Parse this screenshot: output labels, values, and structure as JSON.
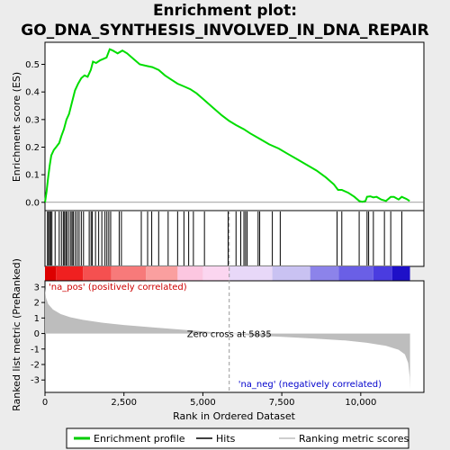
{
  "chart_data": {
    "type": "line",
    "title_line1": "Enrichment plot:",
    "title_line2": "GO_DNA_SYNTHESIS_INVOLVED_IN_DNA_REPAIR",
    "xlabel": "Rank in Ordered Dataset",
    "ylabel_top": "Enrichment score (ES)",
    "ylabel_bottom": "Ranked list metric (PreRanked)",
    "xlim": [
      0,
      12000
    ],
    "es_ylim": [
      -0.03,
      0.58
    ],
    "metric_ylim": [
      -3.8,
      3.4
    ],
    "x_ticks": [
      {
        "value": 0,
        "label": "0"
      },
      {
        "value": 2500,
        "label": "2,500"
      },
      {
        "value": 5000,
        "label": "5,000"
      },
      {
        "value": 7500,
        "label": "7,500"
      },
      {
        "value": 10000,
        "label": "10,000"
      }
    ],
    "es_ticks": [
      {
        "value": 0.0,
        "label": "0.0"
      },
      {
        "value": 0.1,
        "label": "0.1"
      },
      {
        "value": 0.2,
        "label": "0.2"
      },
      {
        "value": 0.3,
        "label": "0.3"
      },
      {
        "value": 0.4,
        "label": "0.4"
      },
      {
        "value": 0.5,
        "label": "0.5"
      }
    ],
    "metric_ticks": [
      {
        "value": 3,
        "label": "3"
      },
      {
        "value": 2,
        "label": "2"
      },
      {
        "value": 1,
        "label": "1"
      },
      {
        "value": 0,
        "label": "0"
      },
      {
        "value": -1,
        "label": "-1"
      },
      {
        "value": -2,
        "label": "-2"
      },
      {
        "value": -3,
        "label": "-3"
      }
    ],
    "enrichment_profile": [
      [
        0,
        0.0
      ],
      [
        50,
        0.04
      ],
      [
        100,
        0.09
      ],
      [
        150,
        0.135
      ],
      [
        200,
        0.17
      ],
      [
        280,
        0.19
      ],
      [
        350,
        0.2
      ],
      [
        450,
        0.215
      ],
      [
        520,
        0.24
      ],
      [
        600,
        0.265
      ],
      [
        680,
        0.3
      ],
      [
        760,
        0.32
      ],
      [
        850,
        0.36
      ],
      [
        950,
        0.405
      ],
      [
        1050,
        0.43
      ],
      [
        1150,
        0.45
      ],
      [
        1250,
        0.46
      ],
      [
        1350,
        0.455
      ],
      [
        1450,
        0.48
      ],
      [
        1520,
        0.51
      ],
      [
        1620,
        0.505
      ],
      [
        1750,
        0.515
      ],
      [
        1850,
        0.52
      ],
      [
        1950,
        0.525
      ],
      [
        2050,
        0.555
      ],
      [
        2150,
        0.55
      ],
      [
        2300,
        0.54
      ],
      [
        2450,
        0.55
      ],
      [
        2600,
        0.54
      ],
      [
        2800,
        0.52
      ],
      [
        3000,
        0.5
      ],
      [
        3200,
        0.495
      ],
      [
        3400,
        0.49
      ],
      [
        3600,
        0.48
      ],
      [
        3800,
        0.46
      ],
      [
        4000,
        0.445
      ],
      [
        4200,
        0.43
      ],
      [
        4400,
        0.42
      ],
      [
        4600,
        0.41
      ],
      [
        4800,
        0.395
      ],
      [
        5000,
        0.375
      ],
      [
        5300,
        0.345
      ],
      [
        5600,
        0.315
      ],
      [
        5835,
        0.295
      ],
      [
        6050,
        0.28
      ],
      [
        6300,
        0.265
      ],
      [
        6500,
        0.25
      ],
      [
        6800,
        0.23
      ],
      [
        7100,
        0.21
      ],
      [
        7400,
        0.195
      ],
      [
        7700,
        0.175
      ],
      [
        8000,
        0.155
      ],
      [
        8300,
        0.135
      ],
      [
        8600,
        0.115
      ],
      [
        8900,
        0.09
      ],
      [
        9150,
        0.065
      ],
      [
        9280,
        0.045
      ],
      [
        9400,
        0.045
      ],
      [
        9600,
        0.035
      ],
      [
        9800,
        0.02
      ],
      [
        9950,
        0.005
      ],
      [
        10050,
        0.002
      ],
      [
        10150,
        0.005
      ],
      [
        10200,
        0.02
      ],
      [
        10300,
        0.022
      ],
      [
        10400,
        0.018
      ],
      [
        10500,
        0.02
      ],
      [
        10650,
        0.01
      ],
      [
        10800,
        0.005
      ],
      [
        10950,
        0.02
      ],
      [
        11050,
        0.02
      ],
      [
        11200,
        0.01
      ],
      [
        11300,
        0.02
      ],
      [
        11450,
        0.012
      ],
      [
        11550,
        0.005
      ]
    ],
    "hits": [
      80,
      110,
      150,
      180,
      220,
      320,
      450,
      520,
      580,
      620,
      660,
      700,
      760,
      820,
      860,
      900,
      960,
      1020,
      1080,
      1150,
      1220,
      1400,
      1460,
      1500,
      1600,
      1700,
      1800,
      1900,
      1960,
      2020,
      2080,
      2350,
      2420,
      3050,
      3250,
      3380,
      3600,
      3900,
      4200,
      4400,
      4550,
      4700,
      5050,
      5800,
      6050,
      6200,
      6300,
      6350,
      6400,
      6750,
      6800,
      7200,
      7450,
      9250,
      9400,
      9950,
      10200,
      10250,
      10400,
      10750,
      10950,
      11300
    ],
    "metric_profile": [
      [
        0,
        2.9
      ],
      [
        30,
        2.3
      ],
      [
        100,
        1.9
      ],
      [
        250,
        1.55
      ],
      [
        500,
        1.25
      ],
      [
        800,
        1.05
      ],
      [
        1200,
        0.88
      ],
      [
        1800,
        0.7
      ],
      [
        2500,
        0.55
      ],
      [
        3500,
        0.38
      ],
      [
        4500,
        0.22
      ],
      [
        5835,
        0.0
      ],
      [
        6500,
        -0.12
      ],
      [
        7500,
        -0.22
      ],
      [
        8500,
        -0.32
      ],
      [
        9500,
        -0.45
      ],
      [
        10200,
        -0.6
      ],
      [
        10800,
        -0.8
      ],
      [
        11200,
        -1.05
      ],
      [
        11400,
        -1.35
      ],
      [
        11500,
        -1.9
      ],
      [
        11550,
        -2.8
      ],
      [
        11560,
        -3.6
      ]
    ],
    "zero_cross": 5835,
    "zero_cross_label": "Zero cross at 5835",
    "pos_label": "'na_pos' (positively correlated)",
    "neg_label": "'na_neg' (negatively correlated)",
    "legend": [
      {
        "label": "Enrichment profile",
        "color": "#00cc00"
      },
      {
        "label": "Hits",
        "color": "#000000"
      },
      {
        "label": "Ranking metric scores",
        "color": "#bdbdbd"
      }
    ],
    "colors": {
      "profile": "#00dd00",
      "metric_fill": "#bdbdbd",
      "pos_text": "#cc0000",
      "neg_text": "#0000cc",
      "zero_line": "#999999",
      "background": "#ececec"
    }
  }
}
